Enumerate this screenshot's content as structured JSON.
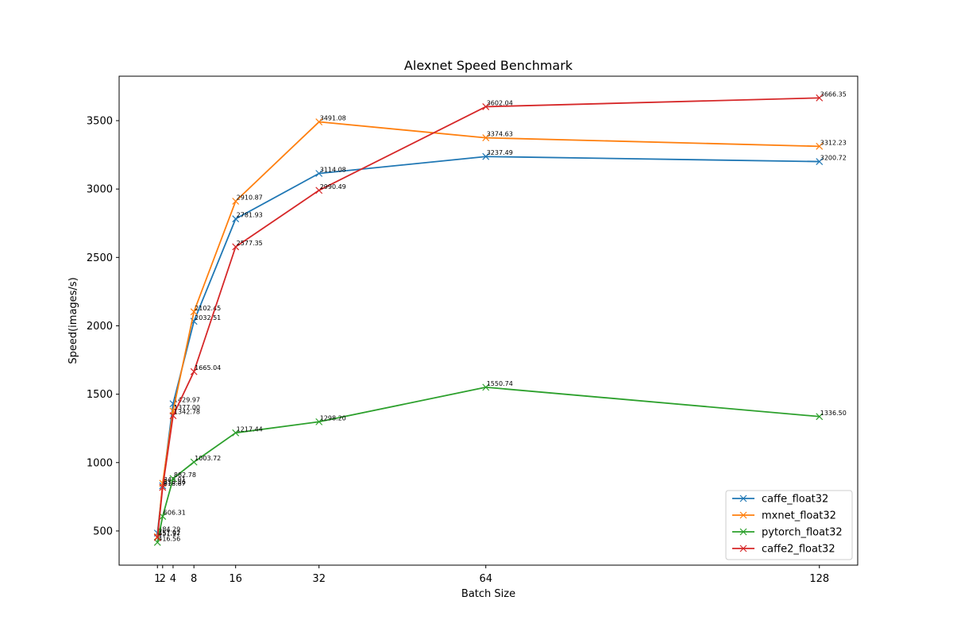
{
  "chart_data": {
    "type": "line",
    "title": "Alexnet Speed Benchmark",
    "xlabel": "Batch Size",
    "ylabel": "Speed(images/s)",
    "x": [
      1,
      2,
      4,
      8,
      16,
      32,
      64,
      128
    ],
    "xticks": [
      1,
      2,
      4,
      8,
      16,
      32,
      64,
      128
    ],
    "xlim": [
      -6.35,
      135.35
    ],
    "yticks": [
      500,
      1000,
      1500,
      2000,
      2500,
      3000,
      3500
    ],
    "ylim": [
      250,
      3825
    ],
    "grid": false,
    "legend_position": "lower-right",
    "marker": "x",
    "series": [
      {
        "name": "caffe_float32",
        "color": "#1f77b4",
        "values": [
          484.29,
          830.56,
          1429.97,
          2032.51,
          2781.93,
          3114.08,
          3237.49,
          3200.72
        ],
        "labels": [
          "484.29",
          "830.56",
          "1429.97",
          "2032.51",
          "2781.93",
          "3114.08",
          "3237.49",
          "3200.72"
        ]
      },
      {
        "name": "mxnet_float32",
        "color": "#ff7f0e",
        "values": [
          457.92,
          849.01,
          1377.0,
          2102.45,
          2910.87,
          3491.08,
          3374.63,
          3312.23
        ],
        "labels": [
          "457.92",
          "849.01",
          "1377.00",
          "2102.45",
          "2910.87",
          "3491.08",
          "3374.63",
          "3312.23"
        ]
      },
      {
        "name": "pytorch_float32",
        "color": "#2ca02c",
        "values": [
          416.56,
          606.31,
          882.78,
          1003.72,
          1217.44,
          1298.2,
          1550.74,
          1336.5
        ],
        "labels": [
          "416.56",
          "606.31",
          "882.78",
          "1003.72",
          "1217.44",
          "1298.20",
          "1550.74",
          "1336.50"
        ]
      },
      {
        "name": "caffe2_float32",
        "color": "#d62728",
        "values": [
          451.97,
          818.67,
          1342.78,
          1665.04,
          2577.35,
          2990.49,
          3602.04,
          3666.35
        ],
        "labels": [
          "451.97",
          "818.67",
          "1342.78",
          "1665.04",
          "2577.35",
          "2990.49",
          "3602.04",
          "3666.35"
        ]
      }
    ]
  }
}
